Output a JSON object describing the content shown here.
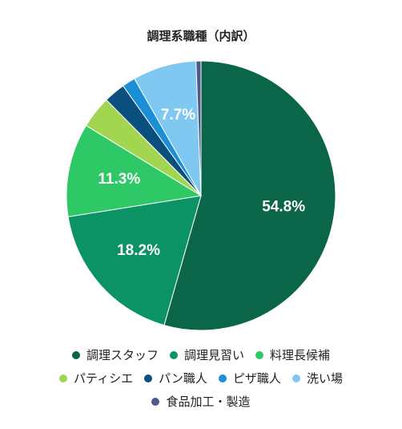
{
  "chart_data": {
    "type": "pie",
    "title": "調理系職種（内訳）",
    "slices": [
      {
        "label": "調理スタッフ",
        "value": 54.8,
        "color": "#0b6548",
        "show_label": "54.8%"
      },
      {
        "label": "調理見習い",
        "value": 18.2,
        "color": "#0b9365",
        "show_label": "18.2%"
      },
      {
        "label": "料理長候補",
        "value": 11.3,
        "color": "#2ec866",
        "show_label": "11.3%"
      },
      {
        "label": "パティシエ",
        "value": 3.9,
        "color": "#a3d650",
        "show_label": ""
      },
      {
        "label": "パン職人",
        "value": 2.6,
        "color": "#0a4f7e",
        "show_label": ""
      },
      {
        "label": "ピザ職人",
        "value": 1.6,
        "color": "#1a8fd6",
        "show_label": ""
      },
      {
        "label": "洗い場",
        "value": 7.7,
        "color": "#7ec8f2",
        "show_label": "7.7%"
      },
      {
        "label": "食品加工・製造",
        "value": 0.6,
        "color": "#4d5a8a",
        "show_label": ""
      }
    ],
    "legend_placement": "bottom"
  }
}
